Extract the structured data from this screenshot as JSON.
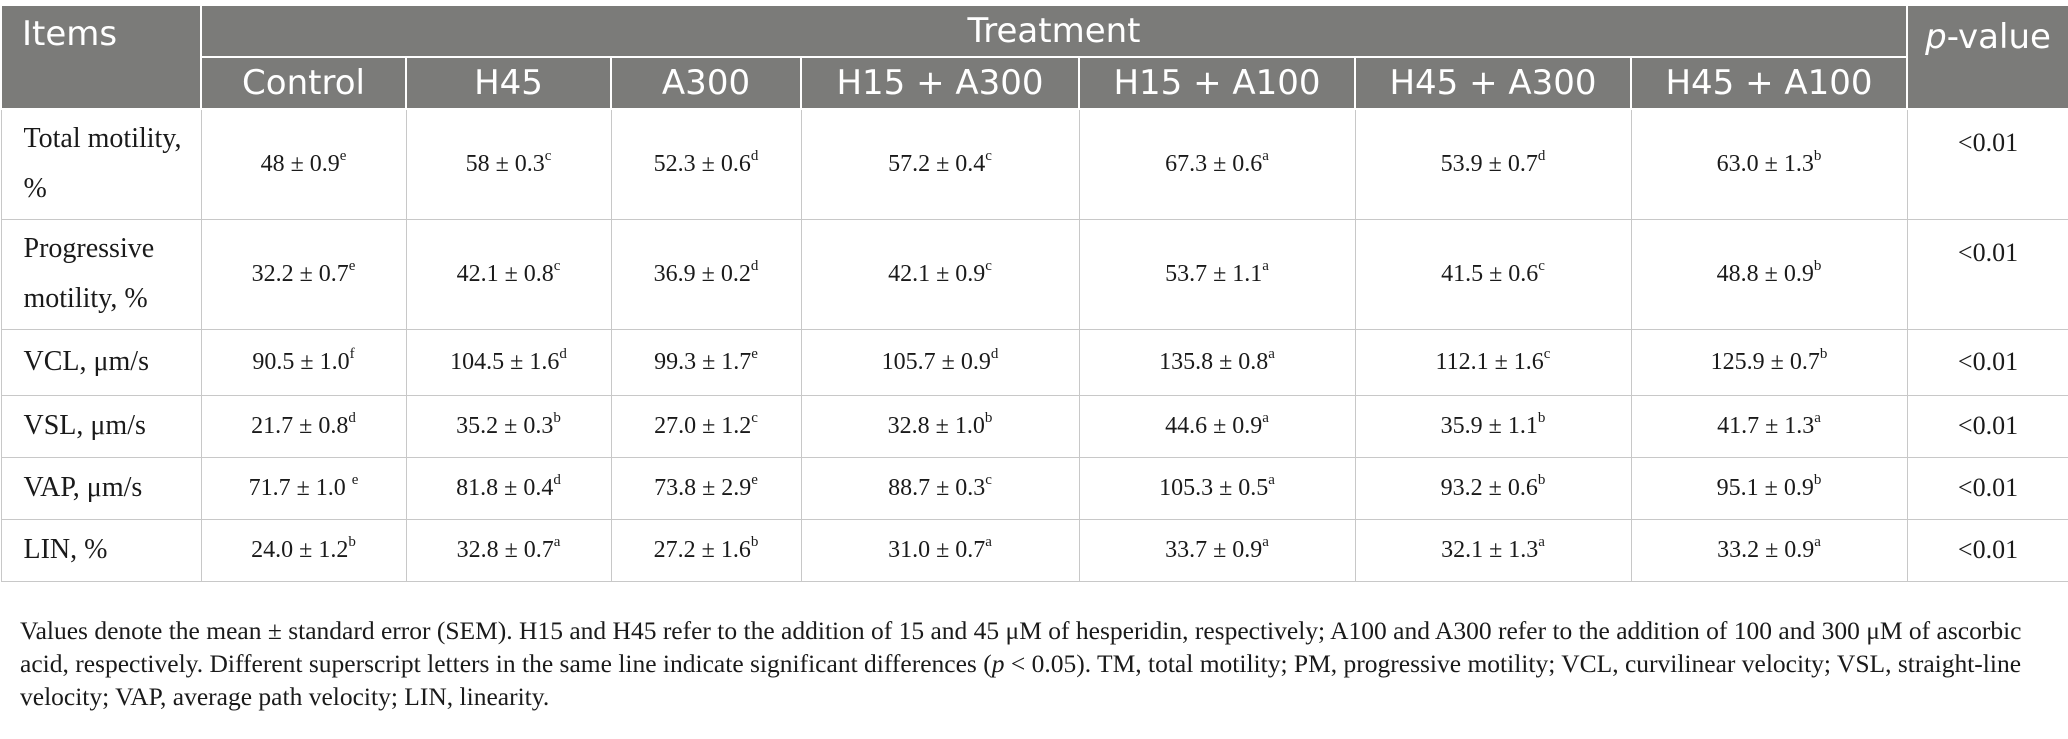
{
  "header": {
    "items": "Items",
    "treatment": "Treatment",
    "p_italic": "p",
    "p_rest": "-value",
    "groups": [
      "Control",
      "H45",
      "A300",
      "H15 + A300",
      "H15 + A100",
      "H45 + A300",
      "H45 + A100"
    ]
  },
  "rows": [
    {
      "label": "Total motility, %",
      "cells": [
        {
          "v": "48 ± 0.9",
          "s": "e"
        },
        {
          "v": "58 ± 0.3",
          "s": "c"
        },
        {
          "v": "52.3 ± 0.6",
          "s": "d"
        },
        {
          "v": "57.2 ± 0.4",
          "s": "c"
        },
        {
          "v": "67.3 ± 0.6",
          "s": "a"
        },
        {
          "v": "53.9 ± 0.7",
          "s": "d"
        },
        {
          "v": "63.0 ± 1.3",
          "s": "b"
        }
      ],
      "p": "<0.01"
    },
    {
      "label": "Progressive motility, %",
      "cells": [
        {
          "v": "32.2 ± 0.7",
          "s": "e"
        },
        {
          "v": "42.1 ± 0.8",
          "s": "c"
        },
        {
          "v": "36.9 ± 0.2",
          "s": "d"
        },
        {
          "v": "42.1 ± 0.9",
          "s": "c"
        },
        {
          "v": "53.7 ± 1.1",
          "s": "a"
        },
        {
          "v": "41.5 ± 0.6",
          "s": "c"
        },
        {
          "v": "48.8 ± 0.9",
          "s": "b"
        }
      ],
      "p": "<0.01"
    },
    {
      "label": "VCL, μm/s",
      "cells": [
        {
          "v": "90.5 ± 1.0",
          "s": "f"
        },
        {
          "v": "104.5 ± 1.6",
          "s": "d"
        },
        {
          "v": "99.3 ± 1.7",
          "s": "e"
        },
        {
          "v": "105.7 ± 0.9",
          "s": "d"
        },
        {
          "v": "135.8 ± 0.8",
          "s": "a"
        },
        {
          "v": "112.1 ± 1.6",
          "s": "c"
        },
        {
          "v": "125.9 ± 0.7",
          "s": "b"
        }
      ],
      "p": "<0.01"
    },
    {
      "label": "VSL, μm/s",
      "cells": [
        {
          "v": "21.7 ± 0.8",
          "s": "d"
        },
        {
          "v": "35.2 ± 0.3",
          "s": "b"
        },
        {
          "v": "27.0 ± 1.2",
          "s": "c"
        },
        {
          "v": "32.8 ± 1.0",
          "s": "b"
        },
        {
          "v": "44.6 ± 0.9",
          "s": "a"
        },
        {
          "v": "35.9 ± 1.1",
          "s": "b"
        },
        {
          "v": "41.7 ± 1.3",
          "s": "a"
        }
      ],
      "p": "<0.01"
    },
    {
      "label": "VAP, μm/s",
      "cells": [
        {
          "v": "71.7 ± 1.0 ",
          "s": "e"
        },
        {
          "v": "81.8 ± 0.4",
          "s": "d"
        },
        {
          "v": "73.8 ± 2.9",
          "s": "e"
        },
        {
          "v": "88.7 ± 0.3",
          "s": "c"
        },
        {
          "v": "105.3 ± 0.5",
          "s": "a"
        },
        {
          "v": "93.2 ± 0.6",
          "s": "b"
        },
        {
          "v": "95.1 ± 0.9",
          "s": "b"
        }
      ],
      "p": "<0.01"
    },
    {
      "label": "LIN, %",
      "cells": [
        {
          "v": "24.0 ± 1.2",
          "s": "b"
        },
        {
          "v": "32.8 ± 0.7",
          "s": "a"
        },
        {
          "v": "27.2 ± 1.6",
          "s": "b"
        },
        {
          "v": "31.0 ± 0.7",
          "s": "a"
        },
        {
          "v": "33.7 ± 0.9",
          "s": "a"
        },
        {
          "v": "32.1 ± 1.3",
          "s": "a"
        },
        {
          "v": "33.2 ± 0.9",
          "s": "a"
        }
      ],
      "p": "<0.01"
    }
  ],
  "footnote": {
    "part1": "Values denote the mean ± standard error (SEM). H15 and H45 refer to the addition of 15 and 45 μM of hesperidin, respectively; A100 and A300 refer to the addition of 100 and 300 μM of ascorbic acid, respectively. Different superscript letters in the same line indicate significant differences (",
    "p_italic": "p",
    "part2": " < 0.05). TM, total motility; PM, progressive motility; VCL, curvilinear velocity; VSL, straight-line velocity; VAP, average path velocity; LIN, linearity."
  }
}
